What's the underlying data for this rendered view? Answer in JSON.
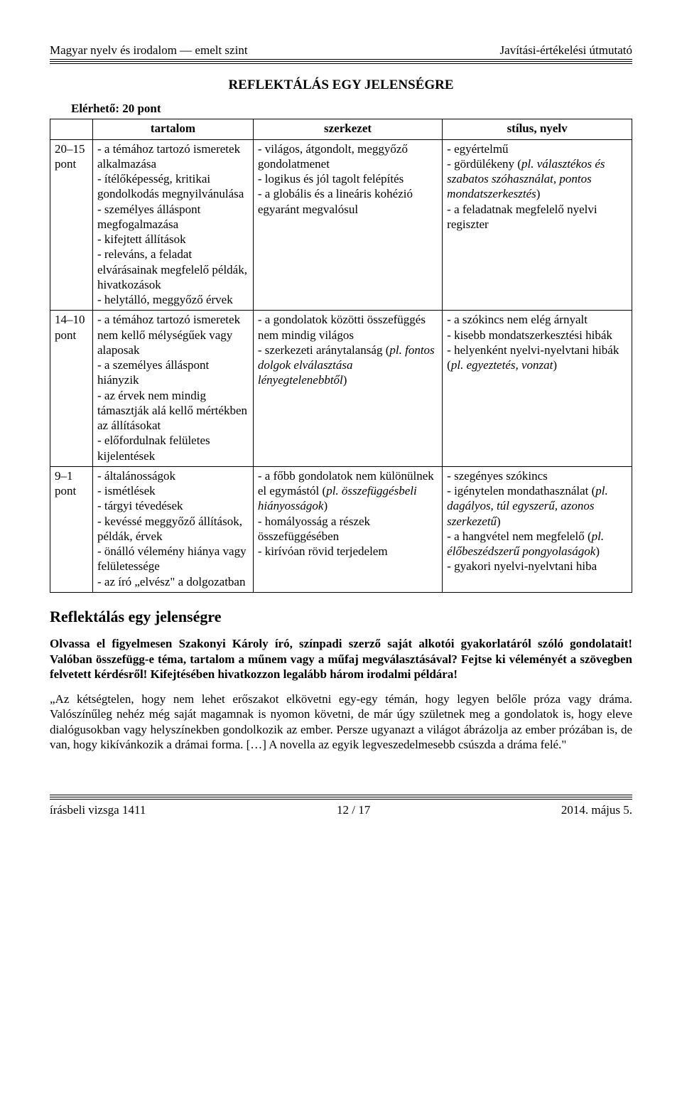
{
  "header": {
    "left": "Magyar nyelv és irodalom — emelt szint",
    "right": "Javítási-értékelési útmutató"
  },
  "title": "REFLEKTÁLÁS EGY JELENSÉGRE",
  "points_line": "Elérhető: 20 pont",
  "table": {
    "head": {
      "c1": "tartalom",
      "c2": "szerkezet",
      "c3": "stílus, nyelv"
    },
    "rows": [
      {
        "band": "20–15\npont",
        "c1": "- a témához tartozó ismeretek alkalmazása\n- ítélőképesség, kritikai gondolkodás megnyilvánulása\n- személyes álláspont megfogalmazása\n- kifejtett állítások\n- releváns, a feladat elvárásainak megfelelő példák, hivatkozások\n- helytálló, meggyőző érvek",
        "c2": "- világos, átgondolt, meggyőző gondolatmenet\n- logikus és jól tagolt felépítés\n- a globális és a lineáris kohézió egyaránt megvalósul",
        "c3_pre": "- egyértelmű\n- gördülékeny (",
        "c3_it": "pl. választékos és szabatos szóhasználat, pontos mondatszerkesztés",
        "c3_post": ")\n- a feladatnak megfelelő nyelvi regiszter"
      },
      {
        "band": "14–10\npont",
        "c1": "- a témához tartozó ismeretek nem kellő mélységűek vagy alaposak\n- a személyes álláspont hiányzik\n- az érvek nem mindig támasztják alá kellő mértékben az állításokat\n- előfordulnak felületes kijelentések",
        "c2_pre": "- a gondolatok közötti összefüggés nem mindig világos\n- szerkezeti aránytalanság (",
        "c2_it": "pl. fontos dolgok elválasztása lényegtelenebbtől",
        "c2_post": ")",
        "c3_pre": "- a szókincs nem elég árnyalt\n- kisebb mondatszer­kesztési hibák\n- helyenként nyelvi-nyelvtani hibák (",
        "c3_it": "pl. egyeztetés, vonzat",
        "c3_post": ")"
      },
      {
        "band": "9–1\npont",
        "c1": "- általánosságok\n- ismétlések\n- tárgyi tévedések\n- kevéssé meggyőző állítások, példák, érvek\n- önálló vélemény hiánya vagy felületessége\n- az író „elvész\" a dolgozatban",
        "c2_pre": "- a főbb gondolatok nem különülnek el egymástól (",
        "c2_it": "pl. összefüggésbeli hiányosságok",
        "c2_post": ")\n- homályosság a részek összefüggésében\n- kirívóan rövid terjedelem",
        "c3_pre": "- szegényes szókincs\n- igénytelen mondat­használat (",
        "c3_it": "pl. dagályos, túl egyszerű, azonos szerkezetű",
        "c3_post": ")\n- a hangvétel nem megfelelő (",
        "c3_it2": "pl. élőbeszédszerű pongyolaságok",
        "c3_post2": ")\n- gyakori nyelvi-nyelvtani hiba"
      }
    ]
  },
  "section_h2": "Reflektálás egy jelenségre",
  "task": "Olvassa el figyelmesen Szakonyi Károly író, színpadi szerző saját alkotói gyakorlatáról szóló gondolatait! Valóban összefügg-e téma, tartalom a műnem vagy a műfaj megválasztásával? Fejtse ki véleményét a szövegben felvetett kérdésről! Kifejtésében hivatkozzon legalább három irodalmi példára!",
  "quote": "„Az kétségtelen, hogy nem lehet erőszakot elkövetni egy-egy témán, hogy legyen belőle próza vagy dráma. Valószínűleg nehéz még saját magamnak is nyomon követni, de már úgy születnek meg a gondolatok is, hogy eleve dialógusokban vagy helyszínekben gondolkozik az ember. Persze ugyanazt a világot ábrázolja az ember prózában is, de van, hogy kikívánkozik a drámai forma. […] A novella az egyik legveszedelmesebb csúszda a dráma felé.\"",
  "footer": {
    "left": "írásbeli vizsga 1411",
    "center": "12 / 17",
    "right": "2014. május 5."
  }
}
